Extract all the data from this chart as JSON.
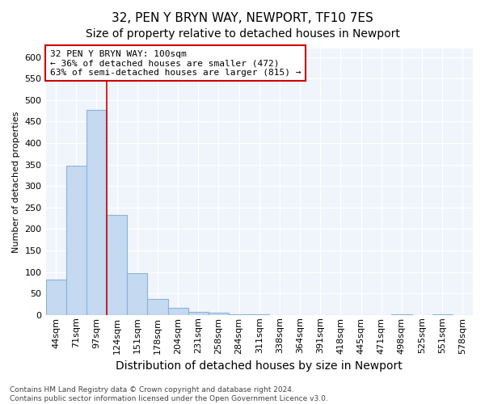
{
  "title": "32, PEN Y BRYN WAY, NEWPORT, TF10 7ES",
  "subtitle": "Size of property relative to detached houses in Newport",
  "xlabel": "Distribution of detached houses by size in Newport",
  "ylabel": "Number of detached properties",
  "categories": [
    "44sqm",
    "71sqm",
    "97sqm",
    "124sqm",
    "151sqm",
    "178sqm",
    "204sqm",
    "231sqm",
    "258sqm",
    "284sqm",
    "311sqm",
    "338sqm",
    "364sqm",
    "391sqm",
    "418sqm",
    "445sqm",
    "471sqm",
    "498sqm",
    "525sqm",
    "551sqm",
    "578sqm"
  ],
  "values": [
    83,
    347,
    478,
    233,
    97,
    37,
    16,
    7,
    6,
    2,
    1,
    0,
    0,
    0,
    0,
    0,
    0,
    2,
    0,
    1,
    0
  ],
  "bar_color": "#c5d9f0",
  "bar_edge_color": "#8ab4d8",
  "vline_x": 2.5,
  "vline_color": "#cc0000",
  "annotation_line1": "32 PEN Y BRYN WAY: 100sqm",
  "annotation_line2": "← 36% of detached houses are smaller (472)",
  "annotation_line3": "63% of semi-detached houses are larger (815) →",
  "annotation_facecolor": "#ffffff",
  "annotation_edgecolor": "#cc0000",
  "ylim_max": 620,
  "yticks": [
    0,
    50,
    100,
    150,
    200,
    250,
    300,
    350,
    400,
    450,
    500,
    550,
    600
  ],
  "footer_line1": "Contains HM Land Registry data © Crown copyright and database right 2024.",
  "footer_line2": "Contains public sector information licensed under the Open Government Licence v3.0.",
  "bg_color": "#ffffff",
  "plot_bg_color": "#f0f4fb",
  "grid_color": "#ffffff",
  "title_fontsize": 11,
  "subtitle_fontsize": 10,
  "axis_xlabel_fontsize": 10,
  "axis_ylabel_fontsize": 8,
  "tick_fontsize": 8,
  "annotation_fontsize": 8,
  "footer_fontsize": 6.5
}
